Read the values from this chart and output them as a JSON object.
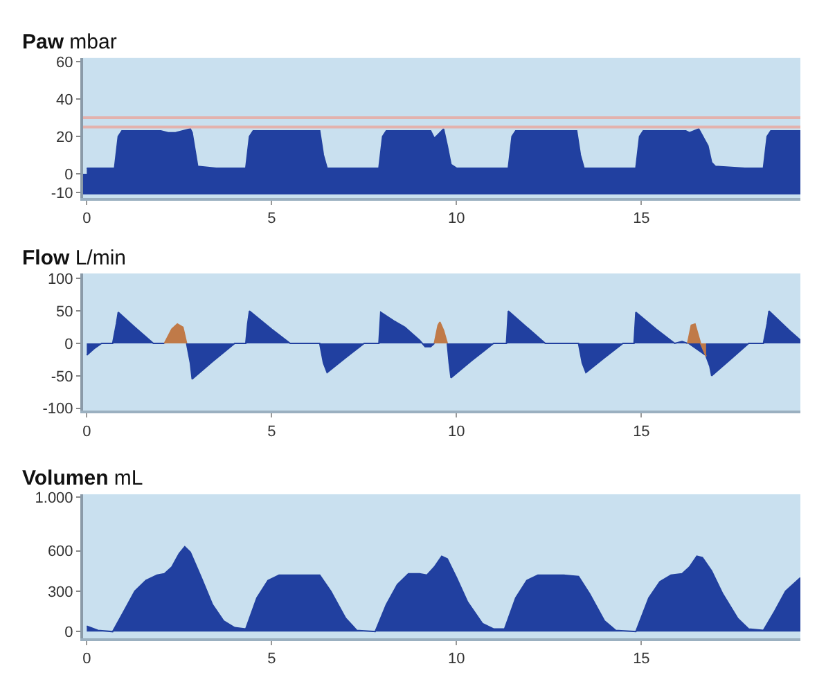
{
  "chart_data": [
    {
      "type": "area",
      "title": "Paw",
      "ylabel": "mbar",
      "x": [
        0,
        0.75,
        0.85,
        0.95,
        1.5,
        2.0,
        2.2,
        2.4,
        2.8,
        2.85,
        3.0,
        3.5,
        4.3,
        4.4,
        4.5,
        5.5,
        6.3,
        6.4,
        6.5,
        7.0,
        7.9,
        8.0,
        8.1,
        9.0,
        9.3,
        9.4,
        9.5,
        9.65,
        9.75,
        9.85,
        10.0,
        11.0,
        11.4,
        11.5,
        11.6,
        12.5,
        13.25,
        13.35,
        13.45,
        14.0,
        14.85,
        14.95,
        15.05,
        15.8,
        16.2,
        16.3,
        16.55,
        16.8,
        16.9,
        17.0,
        17.8,
        18.3,
        18.4,
        18.5,
        19.3
      ],
      "series": [
        {
          "color": "#2140a0",
          "values": [
            3,
            3,
            20,
            23,
            23,
            23,
            22,
            22,
            24,
            22,
            4,
            3,
            3,
            20,
            23,
            23,
            23,
            10,
            3,
            3,
            3,
            20,
            23,
            23,
            23,
            19,
            21,
            24,
            15,
            5,
            3,
            3,
            3,
            20,
            23,
            23,
            23,
            10,
            3,
            3,
            3,
            20,
            23,
            23,
            23,
            22,
            24,
            15,
            6,
            4,
            3,
            3,
            20,
            23,
            23
          ]
        }
      ],
      "xlim": [
        -0.1,
        19.3
      ],
      "xticks": [
        0,
        5,
        10,
        15
      ],
      "ylim": [
        -13,
        62
      ],
      "yticks": [
        -10,
        0,
        20,
        40,
        60
      ],
      "ref_lines": [
        {
          "axis": "y",
          "value": 30,
          "color": "#e3b2ad"
        },
        {
          "axis": "y",
          "value": 25,
          "color": "#e3b2ad"
        }
      ],
      "bands": [
        {
          "axis": "y",
          "from": -11,
          "to": 0,
          "color": "#2140a0"
        }
      ]
    },
    {
      "type": "area",
      "title": "Flow",
      "ylabel": "L/min",
      "series": [
        {
          "color": "#2140a0",
          "x": [
            0,
            0.2,
            0.4,
            0.7,
            0.8,
            0.85,
            1.3,
            1.8,
            2.1,
            2.4,
            2.7,
            2.8,
            2.85,
            3.4,
            4.0,
            4.3,
            4.35,
            4.4,
            5.0,
            5.5,
            6.3,
            6.4,
            6.5,
            7.0,
            7.5,
            7.9,
            7.95,
            8.3,
            8.6,
            9.0,
            9.15,
            9.3,
            9.4,
            9.55,
            9.75,
            9.8,
            9.85,
            10.4,
            11.0,
            11.35,
            11.4,
            11.9,
            12.4,
            13.3,
            13.4,
            13.5,
            14.0,
            14.5,
            14.8,
            14.85,
            15.4,
            15.9,
            16.1,
            16.25,
            16.5,
            16.75,
            16.85,
            16.9,
            17.4,
            17.9,
            18.3,
            18.4,
            18.45,
            19.0,
            19.3
          ],
          "values": [
            -18,
            -8,
            0,
            0,
            30,
            48,
            25,
            0,
            0,
            null,
            0,
            -30,
            -55,
            -28,
            0,
            0,
            30,
            50,
            22,
            0,
            0,
            -30,
            -45,
            -22,
            0,
            0,
            48,
            35,
            25,
            5,
            -5,
            -5,
            0,
            null,
            0,
            -30,
            -53,
            -27,
            0,
            0,
            50,
            25,
            0,
            0,
            -30,
            -45,
            -22,
            0,
            0,
            48,
            22,
            0,
            3,
            0,
            null,
            -20,
            -35,
            -50,
            -25,
            0,
            0,
            30,
            50,
            20,
            5
          ]
        },
        {
          "color": "#c07a48",
          "x": [
            2.1,
            2.3,
            2.45,
            2.6,
            2.7,
            5.0,
            9.4,
            9.5,
            9.55,
            9.65,
            9.75,
            13.0,
            16.25,
            16.35,
            16.45,
            16.6,
            16.75
          ],
          "values": [
            0,
            22,
            30,
            25,
            0,
            null,
            0,
            28,
            33,
            20,
            0,
            null,
            0,
            28,
            30,
            0,
            -20
          ]
        }
      ],
      "xlim": [
        -0.1,
        19.3
      ],
      "xticks": [
        0,
        5,
        10,
        15
      ],
      "ylim": [
        -104,
        108
      ],
      "yticks": [
        -100,
        -50,
        0,
        50,
        100
      ]
    },
    {
      "type": "area",
      "title": "Volumen",
      "ylabel": "mL",
      "x": [
        0,
        0.3,
        0.7,
        1.0,
        1.3,
        1.6,
        1.9,
        2.1,
        2.3,
        2.5,
        2.65,
        2.8,
        3.1,
        3.4,
        3.7,
        4.0,
        4.3,
        4.6,
        4.9,
        5.2,
        5.6,
        6.3,
        6.6,
        7.0,
        7.3,
        7.8,
        8.1,
        8.4,
        8.7,
        9.0,
        9.2,
        9.4,
        9.6,
        9.75,
        10.0,
        10.3,
        10.7,
        11.0,
        11.3,
        11.6,
        11.9,
        12.2,
        12.9,
        13.3,
        13.6,
        14.0,
        14.3,
        14.85,
        15.2,
        15.5,
        15.8,
        16.1,
        16.3,
        16.5,
        16.65,
        16.9,
        17.2,
        17.6,
        17.9,
        18.3,
        18.6,
        18.9,
        19.3
      ],
      "series": [
        {
          "color": "#2140a0",
          "values": [
            40,
            10,
            0,
            150,
            300,
            380,
            420,
            430,
            480,
            580,
            630,
            590,
            400,
            200,
            80,
            30,
            20,
            250,
            380,
            420,
            420,
            420,
            300,
            100,
            10,
            0,
            200,
            350,
            430,
            430,
            420,
            480,
            560,
            540,
            400,
            220,
            60,
            20,
            20,
            250,
            380,
            420,
            420,
            410,
            280,
            80,
            10,
            0,
            250,
            370,
            420,
            430,
            480,
            560,
            550,
            450,
            280,
            100,
            20,
            10,
            150,
            300,
            400
          ]
        }
      ],
      "xlim": [
        -0.1,
        19.3
      ],
      "xticks": [
        0,
        5,
        10,
        15
      ],
      "ylim": [
        -50,
        1020
      ],
      "yticks": [
        0,
        300,
        600,
        {
          "value": 1000,
          "label": "1.000"
        }
      ]
    }
  ]
}
